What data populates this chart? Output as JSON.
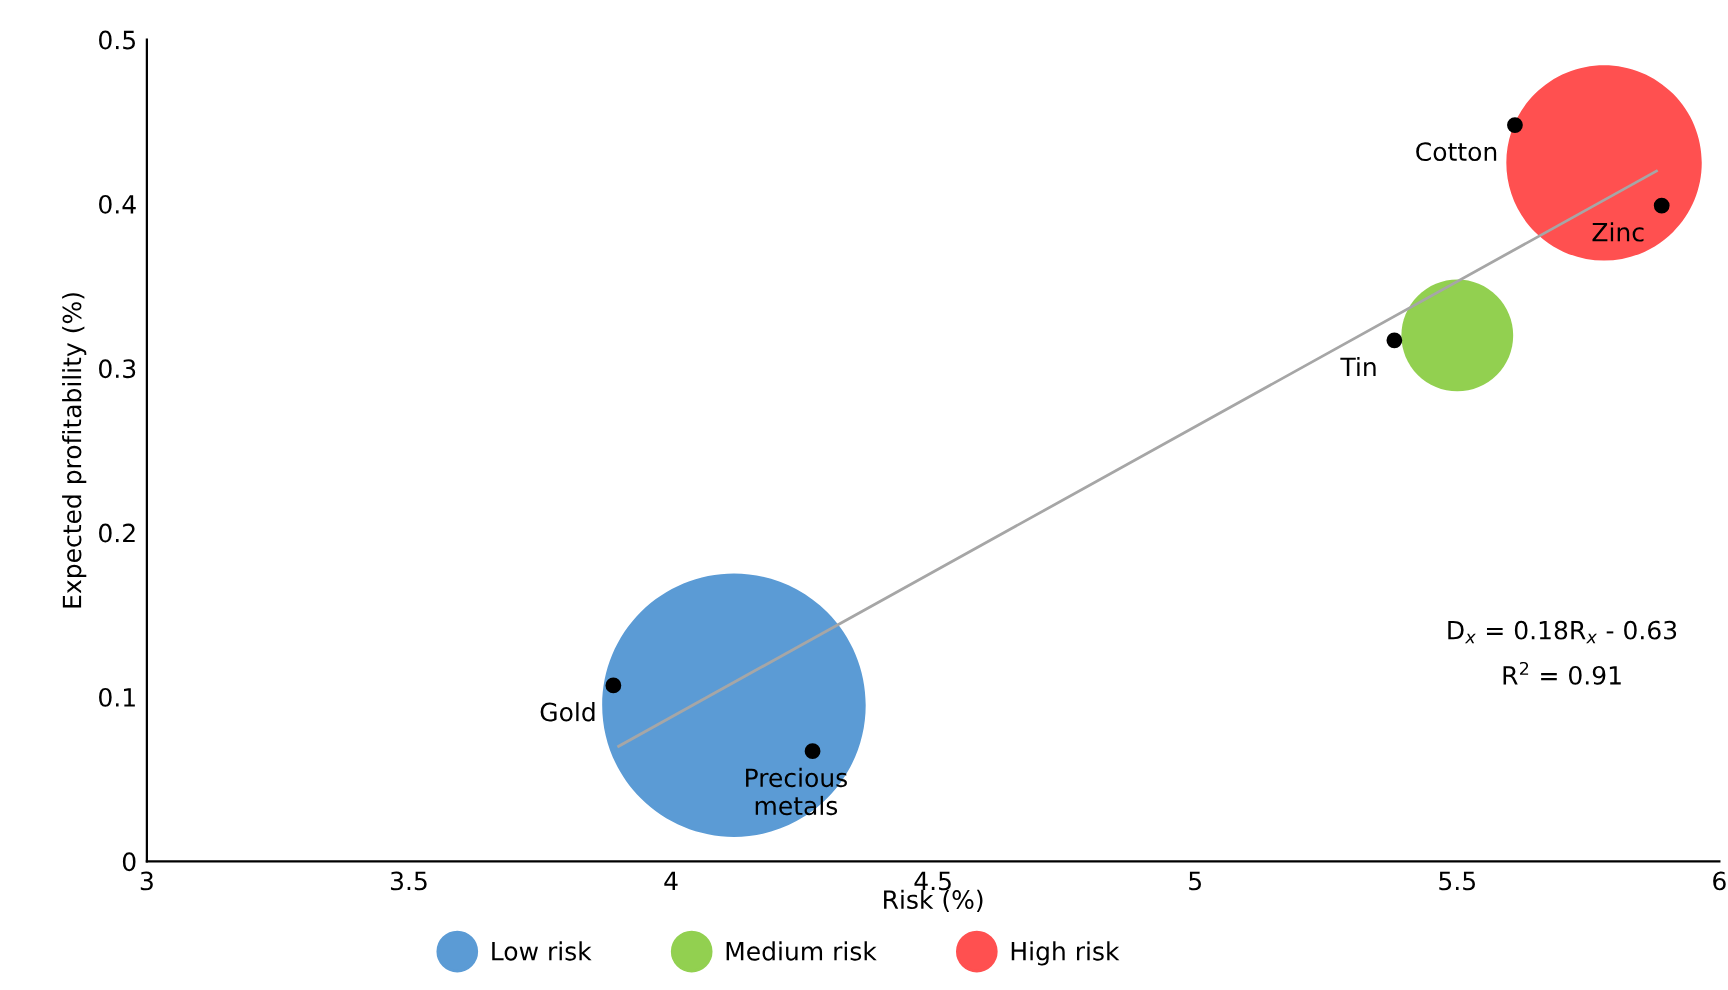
{
  "chart_data": {
    "type": "scatter",
    "xlabel": "Risk (%)",
    "ylabel": "Expected profitability (%)",
    "xlim": [
      3,
      6
    ],
    "ylim": [
      0,
      0.5
    ],
    "xticks": [
      3,
      3.5,
      4,
      4.5,
      5,
      5.5,
      6
    ],
    "yticks": [
      0,
      0.1,
      0.2,
      0.3,
      0.4,
      0.5
    ],
    "grid": false,
    "legend": "bottom",
    "marker": "circle",
    "series": [
      {
        "name": "Low risk",
        "type": "bubble",
        "color": "#5b9bd5",
        "x": [
          4.12
        ],
        "values": [
          0.095
        ],
        "sizes": [
          1
        ]
      },
      {
        "name": "Medium risk",
        "type": "bubble",
        "color": "#92d050",
        "x": [
          5.5
        ],
        "values": [
          0.32
        ],
        "sizes": [
          0.18
        ]
      },
      {
        "name": "High risk",
        "type": "bubble",
        "color": "#ff5050",
        "x": [
          5.78
        ],
        "values": [
          0.425
        ],
        "sizes": [
          0.55
        ]
      },
      {
        "type": "line",
        "marker": "none",
        "color": "#a6a6a6",
        "x": [
          3.9,
          5.88
        ],
        "values": [
          0.07,
          0.42
        ]
      },
      {
        "color": "#000000",
        "x": [
          3.89,
          4.27,
          5.38,
          5.61,
          5.89
        ],
        "values": [
          0.107,
          0.067,
          0.317,
          0.448,
          0.399
        ]
      }
    ],
    "annotations": [
      {
        "text": "Gold",
        "x": 3.89,
        "y": 0.107
      },
      {
        "text": "Precious\nmetals",
        "x": 4.27,
        "y": 0.067
      },
      {
        "text": "Tin",
        "x": 5.38,
        "y": 0.317
      },
      {
        "text": "Cotton",
        "x": 5.61,
        "y": 0.448
      },
      {
        "text": "Zinc",
        "x": 5.89,
        "y": 0.399
      },
      "D$_{x}$ = 0.18R$_{x}$ - 0.63",
      "R$^{2}$ = 0.91"
    ]
  }
}
